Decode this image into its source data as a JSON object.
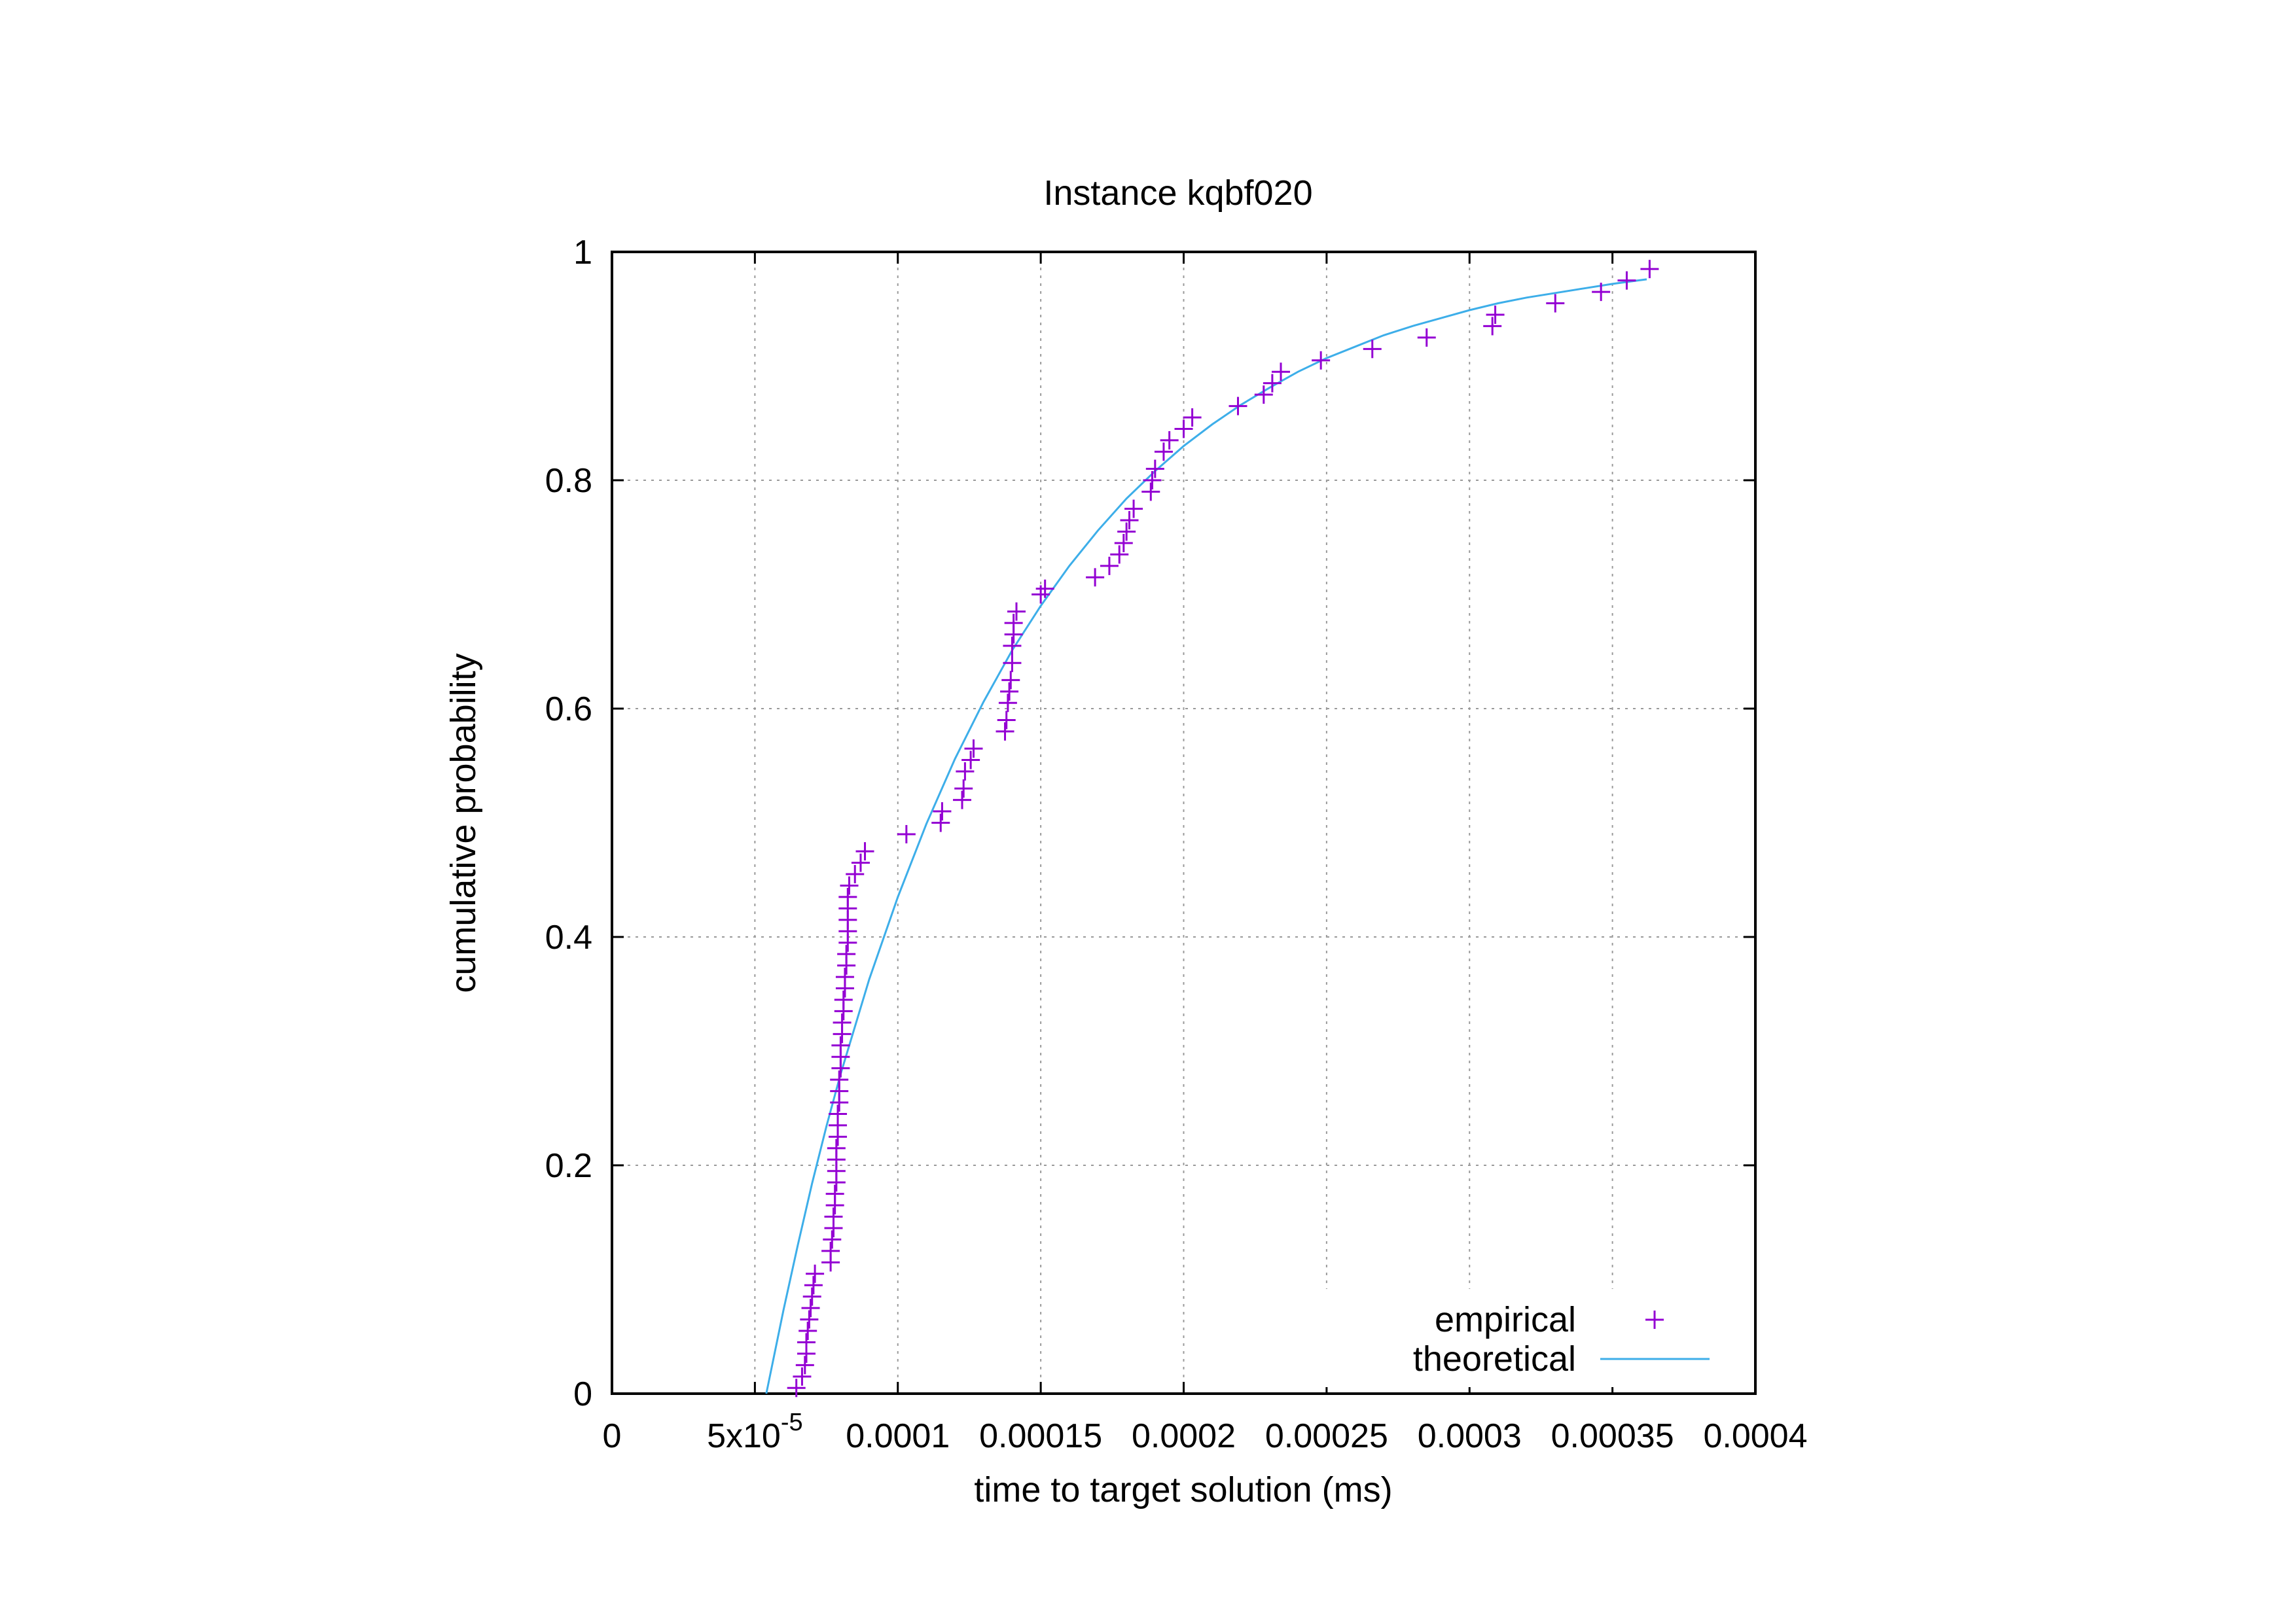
{
  "chart_data": {
    "type": "scatter",
    "title": "Instance kqbf020",
    "xlabel": "time to target solution (ms)",
    "ylabel": "cumulative probability",
    "xlim": [
      0,
      0.0004
    ],
    "ylim": [
      0,
      1
    ],
    "grid": true,
    "legend_position": "bottom-right",
    "x_ticks": [
      {
        "value": 0,
        "label": "0"
      },
      {
        "value": 5e-05,
        "label": "5x10",
        "sup": "-5"
      },
      {
        "value": 0.0001,
        "label": "0.0001"
      },
      {
        "value": 0.00015,
        "label": "0.00015"
      },
      {
        "value": 0.0002,
        "label": "0.0002"
      },
      {
        "value": 0.00025,
        "label": "0.00025"
      },
      {
        "value": 0.0003,
        "label": "0.0003"
      },
      {
        "value": 0.00035,
        "label": "0.00035"
      },
      {
        "value": 0.0004,
        "label": "0.0004"
      }
    ],
    "y_ticks": [
      {
        "value": 0,
        "label": "0"
      },
      {
        "value": 0.2,
        "label": "0.2"
      },
      {
        "value": 0.4,
        "label": "0.4"
      },
      {
        "value": 0.6,
        "label": "0.6"
      },
      {
        "value": 0.8,
        "label": "0.8"
      },
      {
        "value": 1,
        "label": "1"
      }
    ],
    "series": [
      {
        "name": "empirical",
        "kind": "points",
        "marker": "plus",
        "color": "#9400d3",
        "points": [
          [
            6.45e-05,
            0.005
          ],
          [
            6.65e-05,
            0.015
          ],
          [
            6.75e-05,
            0.025
          ],
          [
            6.8e-05,
            0.035
          ],
          [
            6.8e-05,
            0.045
          ],
          [
            6.85e-05,
            0.055
          ],
          [
            6.9e-05,
            0.065
          ],
          [
            6.95e-05,
            0.075
          ],
          [
            7e-05,
            0.085
          ],
          [
            7.05e-05,
            0.095
          ],
          [
            7.1e-05,
            0.105
          ],
          [
            7.65e-05,
            0.115
          ],
          [
            7.65e-05,
            0.125
          ],
          [
            7.7e-05,
            0.135
          ],
          [
            7.75e-05,
            0.145
          ],
          [
            7.75e-05,
            0.155
          ],
          [
            7.8e-05,
            0.165
          ],
          [
            7.8e-05,
            0.175
          ],
          [
            7.85e-05,
            0.185
          ],
          [
            7.85e-05,
            0.195
          ],
          [
            7.85e-05,
            0.205
          ],
          [
            7.85e-05,
            0.215
          ],
          [
            7.9e-05,
            0.225
          ],
          [
            7.9e-05,
            0.235
          ],
          [
            7.9e-05,
            0.245
          ],
          [
            7.95e-05,
            0.255
          ],
          [
            7.95e-05,
            0.265
          ],
          [
            7.95e-05,
            0.275
          ],
          [
            8e-05,
            0.285
          ],
          [
            8e-05,
            0.295
          ],
          [
            8e-05,
            0.305
          ],
          [
            8.05e-05,
            0.315
          ],
          [
            8.05e-05,
            0.325
          ],
          [
            8.1e-05,
            0.335
          ],
          [
            8.1e-05,
            0.345
          ],
          [
            8.15e-05,
            0.355
          ],
          [
            8.15e-05,
            0.365
          ],
          [
            8.2e-05,
            0.375
          ],
          [
            8.2e-05,
            0.385
          ],
          [
            8.25e-05,
            0.395
          ],
          [
            8.25e-05,
            0.405
          ],
          [
            8.25e-05,
            0.415
          ],
          [
            8.25e-05,
            0.425
          ],
          [
            8.25e-05,
            0.435
          ],
          [
            8.3e-05,
            0.445
          ],
          [
            8.5e-05,
            0.455
          ],
          [
            8.7e-05,
            0.465
          ],
          [
            8.85e-05,
            0.475
          ],
          [
            0.000103,
            0.49
          ],
          [
            0.000115,
            0.5
          ],
          [
            0.0001155,
            0.51
          ],
          [
            0.0001225,
            0.52
          ],
          [
            0.000123,
            0.53
          ],
          [
            0.0001235,
            0.545
          ],
          [
            0.0001255,
            0.555
          ],
          [
            0.0001265,
            0.565
          ],
          [
            0.0001375,
            0.58
          ],
          [
            0.000138,
            0.59
          ],
          [
            0.0001385,
            0.605
          ],
          [
            0.000139,
            0.615
          ],
          [
            0.0001395,
            0.625
          ],
          [
            0.00014,
            0.64
          ],
          [
            0.00014,
            0.655
          ],
          [
            0.0001405,
            0.665
          ],
          [
            0.0001405,
            0.675
          ],
          [
            0.0001415,
            0.685
          ],
          [
            0.00015,
            0.7
          ],
          [
            0.0001515,
            0.705
          ],
          [
            0.000169,
            0.715
          ],
          [
            0.000174,
            0.725
          ],
          [
            0.0001775,
            0.735
          ],
          [
            0.000179,
            0.745
          ],
          [
            0.00018,
            0.755
          ],
          [
            0.000181,
            0.765
          ],
          [
            0.0001825,
            0.775
          ],
          [
            0.0001885,
            0.79
          ],
          [
            0.000189,
            0.8
          ],
          [
            0.00019,
            0.81
          ],
          [
            0.000193,
            0.825
          ],
          [
            0.000195,
            0.835
          ],
          [
            0.0002,
            0.845
          ],
          [
            0.000203,
            0.855
          ],
          [
            0.000219,
            0.865
          ],
          [
            0.000228,
            0.875
          ],
          [
            0.000231,
            0.885
          ],
          [
            0.000234,
            0.895
          ],
          [
            0.000248,
            0.905
          ],
          [
            0.000266,
            0.915
          ],
          [
            0.000285,
            0.925
          ],
          [
            0.000308,
            0.935
          ],
          [
            0.000309,
            0.945
          ],
          [
            0.00033,
            0.955
          ],
          [
            0.000346,
            0.965
          ],
          [
            0.000355,
            0.975
          ],
          [
            0.000363,
            0.985
          ]
        ]
      },
      {
        "name": "theoretical",
        "kind": "line",
        "color": "#3daee9",
        "points": [
          [
            5.4e-05,
            0.0
          ],
          [
            6e-05,
            0.073
          ],
          [
            6.5e-05,
            0.13
          ],
          [
            7e-05,
            0.184
          ],
          [
            7.5e-05,
            0.234
          ],
          [
            8e-05,
            0.28
          ],
          [
            9e-05,
            0.363
          ],
          [
            0.0001,
            0.435
          ],
          [
            0.00011,
            0.499
          ],
          [
            0.00012,
            0.556
          ],
          [
            0.00013,
            0.606
          ],
          [
            0.00014,
            0.651
          ],
          [
            0.00015,
            0.69
          ],
          [
            0.00016,
            0.725
          ],
          [
            0.00017,
            0.756
          ],
          [
            0.00018,
            0.784
          ],
          [
            0.00019,
            0.808
          ],
          [
            0.0002,
            0.83
          ],
          [
            0.00021,
            0.849
          ],
          [
            0.00022,
            0.866
          ],
          [
            0.00023,
            0.881
          ],
          [
            0.00024,
            0.895
          ],
          [
            0.00025,
            0.907
          ],
          [
            0.00026,
            0.917
          ],
          [
            0.00027,
            0.927
          ],
          [
            0.00028,
            0.935
          ],
          [
            0.00029,
            0.942
          ],
          [
            0.0003,
            0.949
          ],
          [
            0.00031,
            0.955
          ],
          [
            0.00032,
            0.96
          ],
          [
            0.00033,
            0.964
          ],
          [
            0.00034,
            0.968
          ],
          [
            0.00035,
            0.972
          ],
          [
            0.000362,
            0.976
          ]
        ]
      }
    ]
  }
}
